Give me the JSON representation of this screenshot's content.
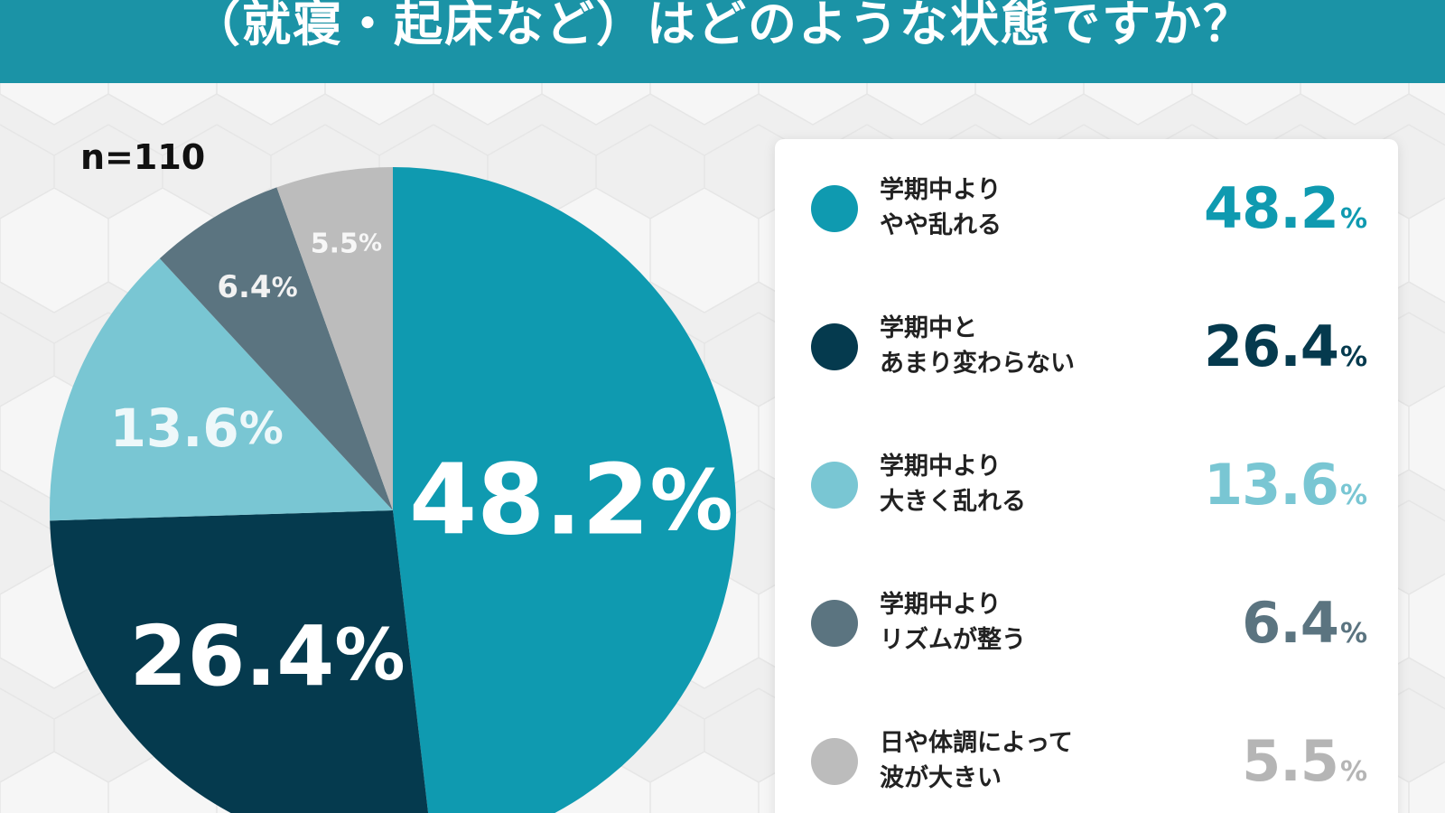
{
  "header": {
    "title": "（就寝・起床など）はどのような状態ですか？"
  },
  "sample_size": "n=110",
  "chart_data": {
    "type": "pie",
    "title": "（就寝・起床など）はどのような状態ですか？",
    "unit": "%",
    "slices": [
      {
        "label_lines": [
          "学期中より",
          "やや乱れる"
        ],
        "value": 48.2,
        "value_text": "48.2",
        "color": "#0f9ab0"
      },
      {
        "label_lines": [
          "学期中と",
          "あまり変わらない"
        ],
        "value": 26.4,
        "value_text": "26.4",
        "color": "#053a4e"
      },
      {
        "label_lines": [
          "学期中より",
          "大きく乱れる"
        ],
        "value": 13.6,
        "value_text": "13.6",
        "color": "#79c6d3"
      },
      {
        "label_lines": [
          "学期中より",
          "リズムが整う"
        ],
        "value": 6.4,
        "value_text": "6.4",
        "color": "#5b7480"
      },
      {
        "label_lines": [
          "日や体調によって",
          "波が大きい"
        ],
        "value": 5.5,
        "value_text": "5.5",
        "color": "#bcbcbc"
      }
    ]
  }
}
